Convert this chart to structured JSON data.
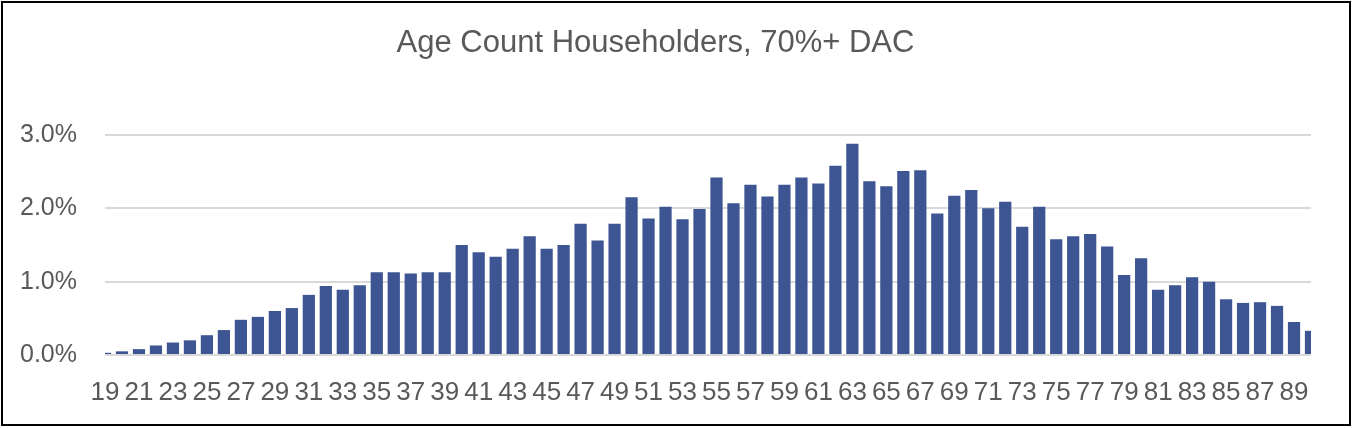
{
  "chart_data": {
    "type": "bar",
    "title": "Age Count Householders, 70%+ DAC",
    "categories": [
      "19",
      null,
      "21",
      null,
      "23",
      null,
      "25",
      null,
      "27",
      null,
      "29",
      null,
      "31",
      null,
      "33",
      null,
      "35",
      null,
      "37",
      null,
      "39",
      null,
      "41",
      null,
      "43",
      null,
      "45",
      null,
      "47",
      null,
      "49",
      null,
      "51",
      null,
      "53",
      null,
      "55",
      null,
      "57",
      null,
      "59",
      null,
      "61",
      null,
      "63",
      null,
      "65",
      null,
      "67",
      null,
      "69",
      null,
      "71",
      null,
      "73",
      null,
      "75",
      null,
      "77",
      null,
      "79",
      null,
      "81",
      null,
      "83",
      null,
      "85",
      null,
      "87",
      null,
      "89",
      null
    ],
    "values": [
      0.03,
      0.05,
      0.08,
      0.13,
      0.17,
      0.2,
      0.27,
      0.34,
      0.48,
      0.52,
      0.6,
      0.64,
      0.82,
      0.94,
      0.89,
      0.95,
      1.13,
      1.13,
      1.11,
      1.13,
      1.13,
      1.5,
      1.4,
      1.34,
      1.45,
      1.62,
      1.45,
      1.5,
      1.79,
      1.56,
      1.79,
      2.15,
      1.86,
      2.02,
      1.85,
      1.99,
      2.42,
      2.07,
      2.32,
      2.16,
      2.32,
      2.42,
      2.34,
      2.58,
      2.88,
      2.37,
      2.3,
      2.51,
      2.52,
      1.93,
      2.17,
      2.25,
      2.0,
      2.09,
      1.75,
      2.02,
      1.58,
      1.62,
      1.65,
      1.48,
      1.09,
      1.32,
      0.89,
      0.95,
      1.06,
      1.0,
      0.76,
      0.71,
      0.72,
      0.67,
      0.45,
      0.33
    ],
    "color": "#3d5592",
    "ylim": [
      0,
      3
    ],
    "yticks": [
      {
        "value": 0,
        "label": "0.0%"
      },
      {
        "value": 1,
        "label": "1.0%"
      },
      {
        "value": 2,
        "label": "2.0%"
      },
      {
        "value": 3,
        "label": "3.0%"
      }
    ],
    "grid": "y"
  }
}
